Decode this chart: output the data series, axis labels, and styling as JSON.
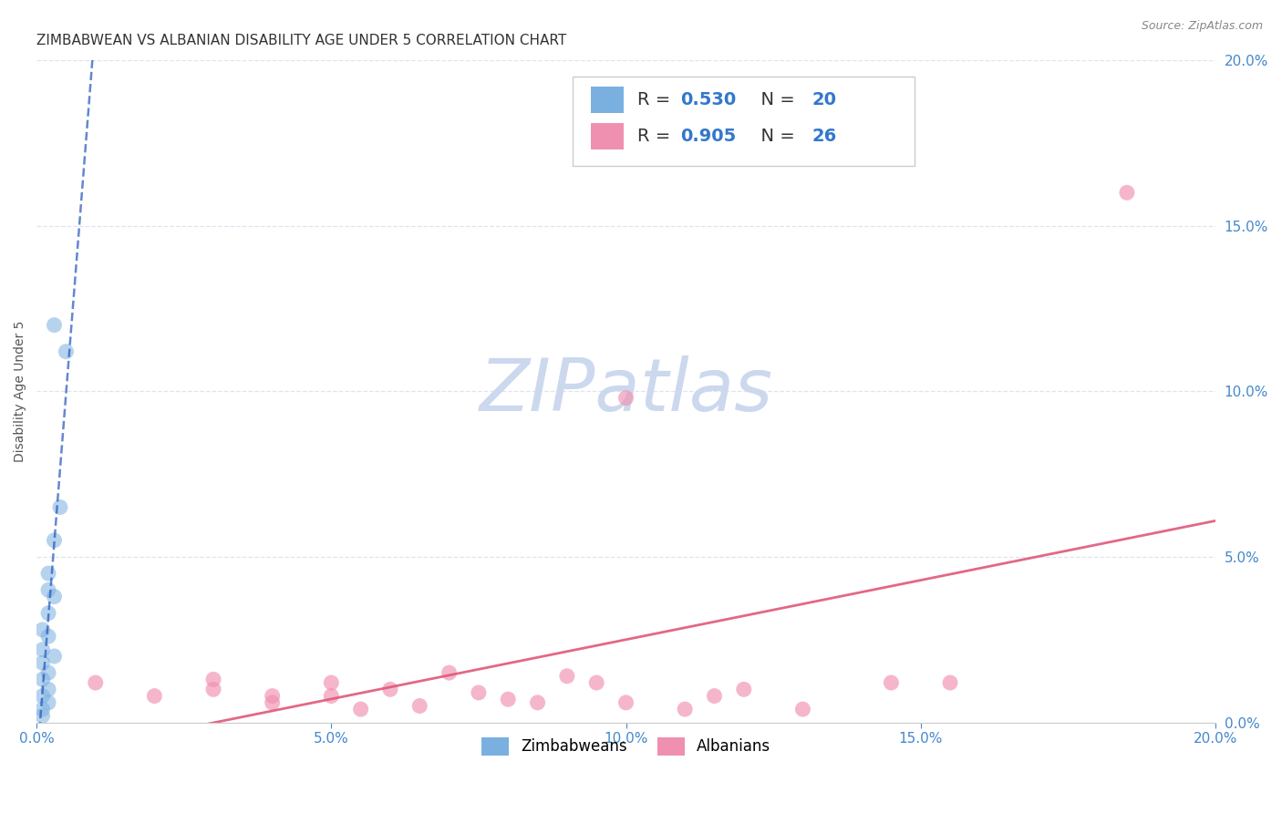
{
  "title": "ZIMBABWEAN VS ALBANIAN DISABILITY AGE UNDER 5 CORRELATION CHART",
  "source": "Source: ZipAtlas.com",
  "ylabel": "Disability Age Under 5",
  "xlim": [
    0.0,
    0.2
  ],
  "ylim": [
    0.0,
    0.2
  ],
  "watermark": "ZIPatlas",
  "legend_entries": [
    {
      "label": "Zimbabweans",
      "R": "0.530",
      "N": "20",
      "color": "#a8c8f0"
    },
    {
      "label": "Albanians",
      "R": "0.905",
      "N": "26",
      "color": "#f4a8c0"
    }
  ],
  "zimbabwean_points": [
    [
      0.003,
      0.12
    ],
    [
      0.005,
      0.112
    ],
    [
      0.004,
      0.065
    ],
    [
      0.003,
      0.055
    ],
    [
      0.002,
      0.045
    ],
    [
      0.002,
      0.04
    ],
    [
      0.003,
      0.038
    ],
    [
      0.002,
      0.033
    ],
    [
      0.001,
      0.028
    ],
    [
      0.002,
      0.026
    ],
    [
      0.001,
      0.022
    ],
    [
      0.003,
      0.02
    ],
    [
      0.001,
      0.018
    ],
    [
      0.002,
      0.015
    ],
    [
      0.001,
      0.013
    ],
    [
      0.002,
      0.01
    ],
    [
      0.001,
      0.008
    ],
    [
      0.002,
      0.006
    ],
    [
      0.001,
      0.004
    ],
    [
      0.001,
      0.002
    ]
  ],
  "albanian_points": [
    [
      0.1,
      0.098
    ],
    [
      0.01,
      0.012
    ],
    [
      0.02,
      0.008
    ],
    [
      0.03,
      0.01
    ],
    [
      0.03,
      0.013
    ],
    [
      0.04,
      0.008
    ],
    [
      0.04,
      0.006
    ],
    [
      0.05,
      0.012
    ],
    [
      0.05,
      0.008
    ],
    [
      0.055,
      0.004
    ],
    [
      0.06,
      0.01
    ],
    [
      0.065,
      0.005
    ],
    [
      0.07,
      0.015
    ],
    [
      0.075,
      0.009
    ],
    [
      0.08,
      0.007
    ],
    [
      0.085,
      0.006
    ],
    [
      0.09,
      0.014
    ],
    [
      0.095,
      0.012
    ],
    [
      0.1,
      0.006
    ],
    [
      0.11,
      0.004
    ],
    [
      0.115,
      0.008
    ],
    [
      0.12,
      0.01
    ],
    [
      0.13,
      0.004
    ],
    [
      0.145,
      0.012
    ],
    [
      0.155,
      0.012
    ],
    [
      0.185,
      0.16
    ]
  ],
  "zimbabwean_dot_color": "#7ab0e0",
  "albanian_dot_color": "#f090b0",
  "zimbabwean_line_color": "#2255bb",
  "albanian_line_color": "#e05878",
  "grid_color": "#dde5f0",
  "background_color": "#ffffff",
  "title_fontsize": 11,
  "axis_label_fontsize": 10,
  "tick_color": "#4488cc",
  "tick_fontsize": 11,
  "watermark_color": "#ccd8ee",
  "watermark_fontsize": 58
}
